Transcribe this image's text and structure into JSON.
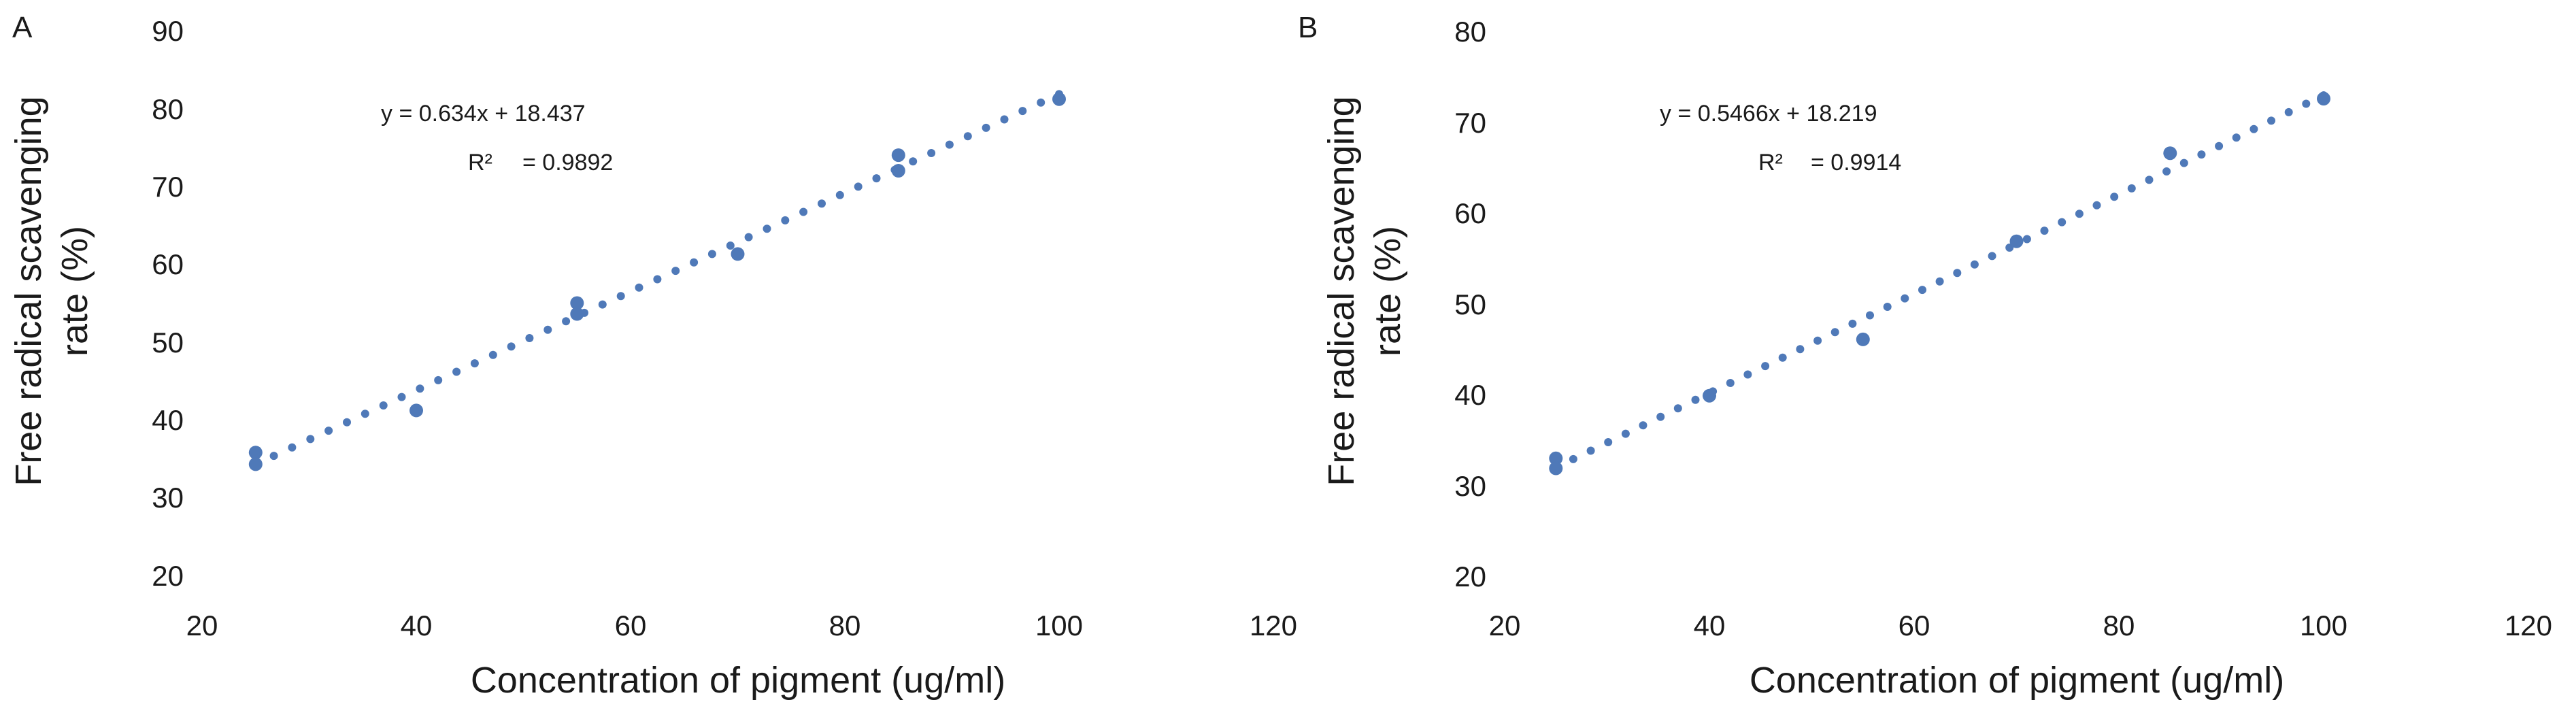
{
  "chart_data": [
    {
      "type": "scatter",
      "panel": "A",
      "title": "",
      "xlabel": "Concentration of pigment (ug/ml)",
      "ylabel_line1": "Free radical scavenging",
      "ylabel_line2": "rate (%)",
      "xlim": [
        20,
        120
      ],
      "ylim": [
        20,
        90
      ],
      "xticks": [
        "20",
        "40",
        "60",
        "80",
        "100",
        "120"
      ],
      "yticks": [
        "20",
        "30",
        "40",
        "50",
        "60",
        "70",
        "80",
        "90"
      ],
      "equation": "y = 0.634x + 18.437",
      "r2_label": "R²",
      "r2_value": "= 0.9892",
      "marker_color": "#4f79b8",
      "trendline": {
        "slope": 0.634,
        "intercept": 18.437,
        "x_start": 25,
        "x_end": 100,
        "dots": 45
      },
      "points": [
        {
          "x": 25,
          "y": 35.8
        },
        {
          "x": 25,
          "y": 34.3
        },
        {
          "x": 40,
          "y": 41.2
        },
        {
          "x": 55,
          "y": 55.0
        },
        {
          "x": 55,
          "y": 53.6
        },
        {
          "x": 70,
          "y": 61.3
        },
        {
          "x": 85,
          "y": 74.0
        },
        {
          "x": 85,
          "y": 72.0
        },
        {
          "x": 100,
          "y": 81.2
        }
      ]
    },
    {
      "type": "scatter",
      "panel": "B",
      "title": "",
      "xlabel": "Concentration of pigment (ug/ml)",
      "ylabel_line1": "Free radical scavenging",
      "ylabel_line2": "rate (%)",
      "xlim": [
        20,
        120
      ],
      "ylim": [
        20,
        80
      ],
      "xticks": [
        "20",
        "40",
        "60",
        "80",
        "100",
        "120"
      ],
      "yticks": [
        "20",
        "30",
        "40",
        "50",
        "60",
        "70",
        "80"
      ],
      "equation": "y = 0.5466x + 18.219",
      "r2_label": "R²",
      "r2_value": "= 0.9914",
      "marker_color": "#4f79b8",
      "trendline": {
        "slope": 0.5466,
        "intercept": 18.219,
        "x_start": 25,
        "x_end": 100,
        "dots": 45
      },
      "points": [
        {
          "x": 25,
          "y": 32.9
        },
        {
          "x": 25,
          "y": 31.8
        },
        {
          "x": 40,
          "y": 39.8
        },
        {
          "x": 55,
          "y": 46.0
        },
        {
          "x": 70,
          "y": 56.8
        },
        {
          "x": 85,
          "y": 66.5
        },
        {
          "x": 100,
          "y": 72.5
        }
      ]
    }
  ]
}
